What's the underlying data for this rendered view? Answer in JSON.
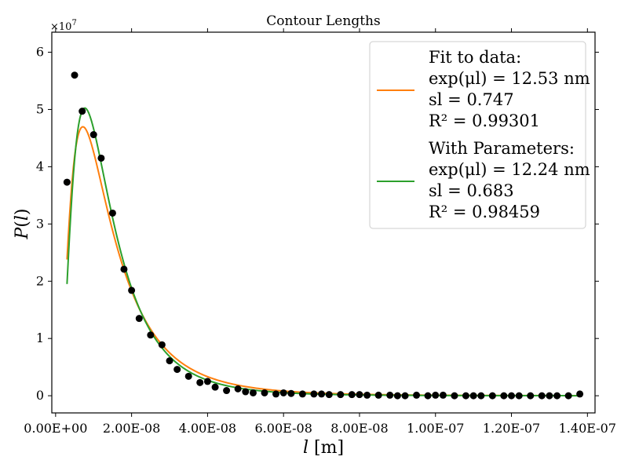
{
  "chart_data": {
    "type": "scatter",
    "title": "Contour Lengths",
    "xlabel": "l [m]",
    "ylabel": "P(l)",
    "x_ticks": [
      0,
      2e-08,
      4e-08,
      6e-08,
      8e-08,
      1e-07,
      1.2e-07,
      1.4e-07
    ],
    "x_tick_labels": [
      "0.00E+00",
      "2.00E-08",
      "4.00E-08",
      "6.00E-08",
      "8.00E-08",
      "1.00E-07",
      "1.20E-07",
      "1.40E-07"
    ],
    "y_ticks": [
      0,
      1,
      2,
      3,
      4,
      5,
      6
    ],
    "y_tick_labels": [
      "0",
      "1",
      "2",
      "3",
      "4",
      "5",
      "6"
    ],
    "y_offset_label": "×10^7",
    "xlim": [
      -1e-09,
      1.42e-07
    ],
    "ylim": [
      -0.3,
      6.35
    ],
    "grid": false,
    "legend_position": "top-right",
    "series": [
      {
        "name": "data",
        "kind": "scatter",
        "color": "#000000",
        "x": [
          3e-09,
          5e-09,
          7e-09,
          1e-08,
          1.2e-08,
          1.5e-08,
          1.8e-08,
          2e-08,
          2.2e-08,
          2.5e-08,
          2.8e-08,
          3e-08,
          3.2e-08,
          3.5e-08,
          3.8e-08,
          4e-08,
          4.2e-08,
          4.5e-08,
          4.8e-08,
          5e-08,
          5.2e-08,
          5.5e-08,
          5.8e-08,
          6e-08,
          6.2e-08,
          6.5e-08,
          6.8e-08,
          7e-08,
          7.2e-08,
          7.5e-08,
          7.8e-08,
          8e-08,
          8.2e-08,
          8.5e-08,
          8.8e-08,
          9e-08,
          9.2e-08,
          9.5e-08,
          9.8e-08,
          1e-07,
          1.02e-07,
          1.05e-07,
          1.08e-07,
          1.1e-07,
          1.12e-07,
          1.15e-07,
          1.18e-07,
          1.2e-07,
          1.22e-07,
          1.25e-07,
          1.28e-07,
          1.3e-07,
          1.32e-07,
          1.35e-07,
          1.38e-07
        ],
        "y": [
          3.73,
          5.6,
          4.97,
          4.56,
          4.15,
          3.19,
          2.21,
          1.84,
          1.35,
          1.06,
          0.89,
          0.61,
          0.46,
          0.34,
          0.23,
          0.25,
          0.15,
          0.09,
          0.12,
          0.07,
          0.05,
          0.05,
          0.03,
          0.05,
          0.04,
          0.03,
          0.03,
          0.03,
          0.02,
          0.02,
          0.02,
          0.02,
          0.01,
          0.01,
          0.01,
          0.0,
          0.0,
          0.01,
          0.0,
          0.01,
          0.01,
          0.0,
          0.0,
          0.0,
          0.0,
          0.0,
          0.0,
          0.0,
          0.0,
          0.0,
          0.0,
          0.0,
          0.0,
          0.0,
          0.03
        ]
      },
      {
        "name": "fit",
        "kind": "line",
        "color": "#ff7f0e",
        "model": "lognormal",
        "mu_exp": 1.253e-08,
        "s": 0.747,
        "amplitude": 1.0,
        "x_start": 3e-09,
        "x_end": 1.38e-07
      },
      {
        "name": "params",
        "kind": "line",
        "color": "#2ca02c",
        "model": "lognormal",
        "mu_exp": 1.224e-08,
        "s": 0.683,
        "amplitude": 1.0,
        "x_start": 3e-09,
        "x_end": 1.38e-07
      }
    ],
    "legend": [
      {
        "series": "fit",
        "color": "#ff7f0e",
        "lines": [
          "Fit to data:",
          "exp(μl) = 12.53 nm",
          "sl = 0.747",
          "R² = 0.99301"
        ]
      },
      {
        "series": "params",
        "color": "#2ca02c",
        "lines": [
          "With Parameters:",
          "exp(μl) = 12.24 nm",
          "sl = 0.683",
          "R² = 0.98459"
        ]
      }
    ]
  }
}
